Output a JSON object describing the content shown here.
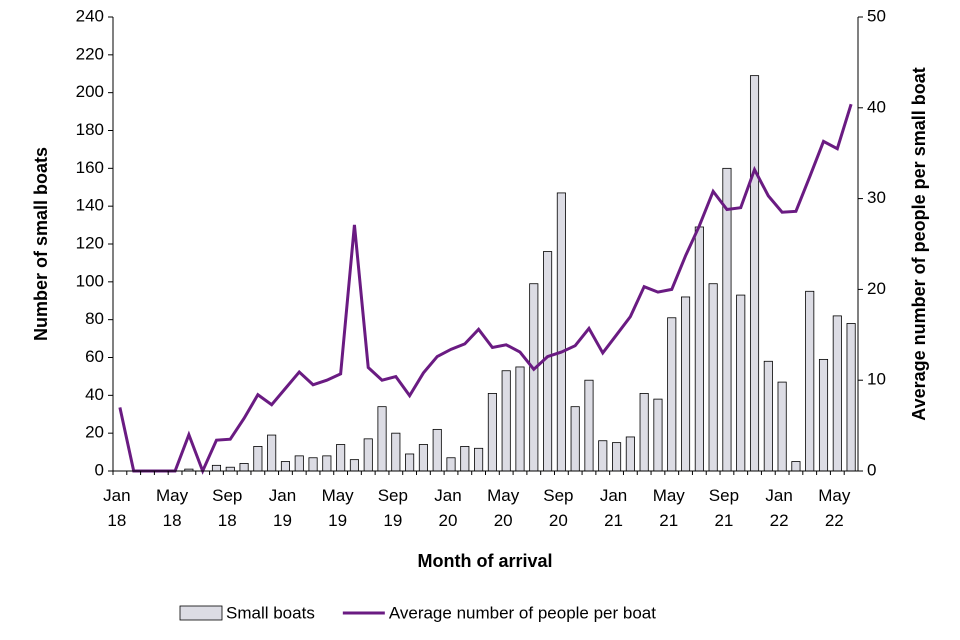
{
  "chart_data": {
    "type": "bar_line",
    "x_label": "Month of arrival",
    "y_label": "Number of small boats",
    "y2_label": "Average number of people per small boat",
    "categories": [
      "Jan 18",
      null,
      null,
      null,
      "May 18",
      null,
      null,
      null,
      "Sep 18",
      null,
      null,
      null,
      "Jan 19",
      null,
      null,
      null,
      "May 19",
      null,
      null,
      null,
      "Sep 19",
      null,
      null,
      null,
      "Jan 20",
      null,
      null,
      null,
      "May 20",
      null,
      null,
      null,
      "Sep 20",
      null,
      null,
      null,
      "Jan 21",
      null,
      null,
      null,
      "May 21",
      null,
      null,
      null,
      "Sep 21",
      null,
      null,
      null,
      "Jan 22",
      null,
      null,
      null,
      "May 22",
      null
    ],
    "series": [
      {
        "name": "Small boats",
        "type": "bar",
        "color": "#dcdce4",
        "values": [
          0,
          0,
          0,
          0,
          0,
          1,
          0,
          3,
          2,
          4,
          13,
          19,
          5,
          8,
          7,
          8,
          14,
          6,
          17,
          34,
          20,
          9,
          14,
          22,
          7,
          13,
          12,
          41,
          53,
          55,
          99,
          116,
          147,
          34,
          48,
          16,
          15,
          18,
          41,
          38,
          81,
          92,
          129,
          99,
          160,
          93,
          209,
          58,
          47,
          5,
          95,
          59,
          82,
          78
        ]
      },
      {
        "name": "Average number of people per boat",
        "type": "line",
        "axis": "y2",
        "color": "#6a1b82",
        "values": [
          7,
          0,
          0,
          0,
          0,
          4,
          0,
          3.4,
          3.5,
          5.8,
          8.4,
          7.3,
          9.1,
          10.9,
          9.5,
          10,
          10.7,
          27.1,
          11.4,
          10,
          10.4,
          8.3,
          10.8,
          12.6,
          13.4,
          14,
          15.6,
          13.6,
          13.9,
          13.1,
          11.2,
          12.6,
          13.1,
          13.8,
          15.7,
          13,
          15,
          17,
          20.3,
          19.7,
          20,
          23.7,
          27,
          30.8,
          28.8,
          29,
          33.2,
          30.3,
          28.5,
          28.6,
          32.4,
          36.3,
          35.5,
          40.4
        ]
      }
    ],
    "ylim": [
      0,
      240
    ],
    "yticks": [
      0,
      20,
      40,
      60,
      80,
      100,
      120,
      140,
      160,
      180,
      200,
      220,
      240
    ],
    "y2lim": [
      0,
      50
    ],
    "y2ticks": [
      0,
      10,
      20,
      30,
      40,
      50
    ]
  }
}
